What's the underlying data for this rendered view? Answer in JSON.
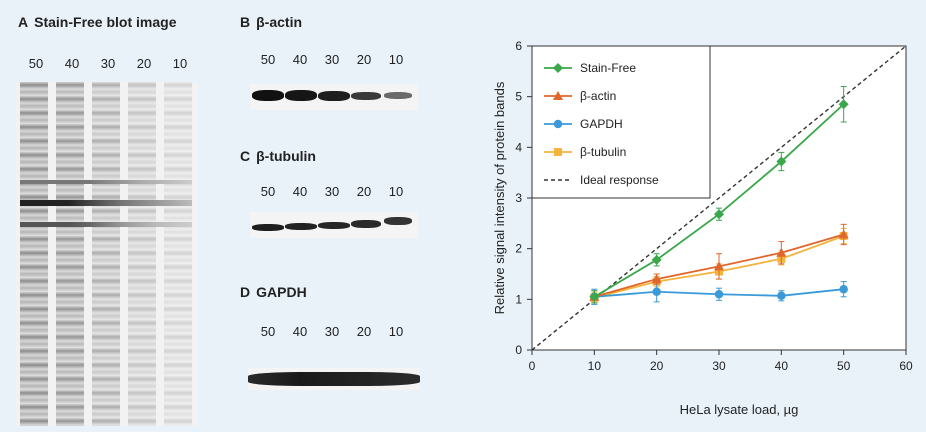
{
  "panels": {
    "a": {
      "letter": "A",
      "title": "Stain-Free blot image",
      "lanes": [
        "50",
        "40",
        "30",
        "20",
        "10"
      ]
    },
    "b": {
      "letter": "B",
      "title": "β-actin",
      "lanes": [
        "50",
        "40",
        "30",
        "20",
        "10"
      ]
    },
    "c": {
      "letter": "C",
      "title": "β-tubulin",
      "lanes": [
        "50",
        "40",
        "30",
        "20",
        "10"
      ]
    },
    "d": {
      "letter": "D",
      "title": "GAPDH",
      "lanes": [
        "50",
        "40",
        "30",
        "20",
        "10"
      ]
    }
  },
  "chart_data": {
    "type": "line",
    "xlabel": "HeLa lysate load, µg",
    "ylabel": "Relative signal intensity of protein bands",
    "xlim": [
      0,
      60
    ],
    "ylim": [
      0,
      6
    ],
    "xticks": [
      0,
      10,
      20,
      30,
      40,
      50,
      60
    ],
    "yticks": [
      0,
      1,
      2,
      3,
      4,
      5,
      6
    ],
    "grid": false,
    "legend_position": "top-left",
    "x": [
      10,
      20,
      30,
      40,
      50
    ],
    "series": [
      {
        "name": "Stain-Free",
        "marker": "diamond",
        "color": "#3aa74a",
        "values": [
          1.05,
          1.78,
          2.68,
          3.72,
          4.85
        ],
        "errors": [
          0.12,
          0.12,
          0.12,
          0.18,
          0.35
        ]
      },
      {
        "name": "β-actin",
        "marker": "triangle",
        "color": "#e0662c",
        "values": [
          1.05,
          1.4,
          1.65,
          1.92,
          2.28
        ],
        "errors": [
          0.12,
          0.1,
          0.25,
          0.22,
          0.2
        ]
      },
      {
        "name": "GAPDH",
        "marker": "circle",
        "color": "#3a9ad9",
        "values": [
          1.05,
          1.15,
          1.1,
          1.07,
          1.2
        ],
        "errors": [
          0.15,
          0.2,
          0.12,
          0.1,
          0.15
        ]
      },
      {
        "name": "β-tubulin",
        "marker": "square",
        "color": "#f3b43d",
        "values": [
          1.03,
          1.35,
          1.55,
          1.8,
          2.25
        ],
        "errors": [
          0.1,
          0.1,
          0.15,
          0.12,
          0.15
        ]
      },
      {
        "name": "Ideal response",
        "style": "dashed",
        "color": "#333333",
        "x": [
          0,
          60
        ],
        "values": [
          0,
          6
        ]
      }
    ]
  }
}
